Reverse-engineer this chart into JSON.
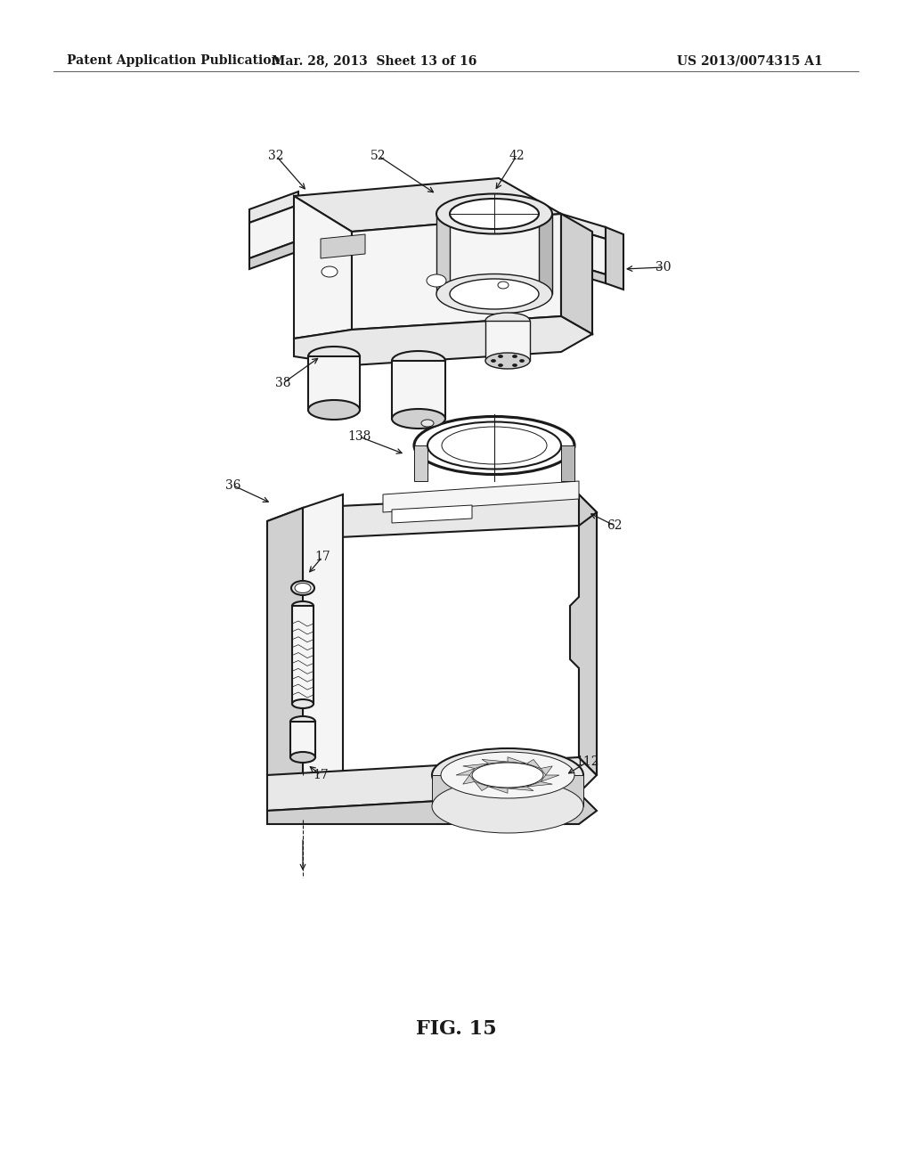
{
  "background_color": "#ffffff",
  "line_color": "#1a1a1a",
  "fill_light": "#f5f5f5",
  "fill_mid": "#e8e8e8",
  "fill_dark": "#d0d0d0",
  "fill_darker": "#b8b8b8",
  "header_left": "Patent Application Publication",
  "header_center": "Mar. 28, 2013  Sheet 13 of 16",
  "header_right": "US 2013/0074315 A1",
  "figure_label": "FIG. 15",
  "lw_main": 1.5,
  "lw_detail": 1.0,
  "lw_thin": 0.7
}
